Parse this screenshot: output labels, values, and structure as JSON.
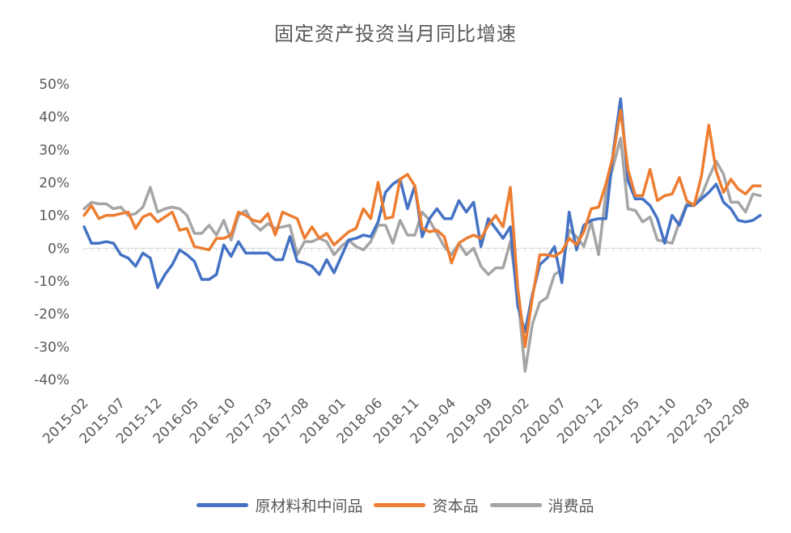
{
  "chart_data": {
    "type": "line",
    "title": "固定资产投资当月同比增速",
    "xlabel": "",
    "ylabel": "",
    "ylim": [
      -0.4,
      0.5
    ],
    "yticks": [
      -0.4,
      -0.3,
      -0.2,
      -0.1,
      0,
      0.1,
      0.2,
      0.3,
      0.4,
      0.5
    ],
    "ytick_labels": [
      "-40%",
      "-30%",
      "-20%",
      "-10%",
      "0%",
      "10%",
      "20%",
      "30%",
      "40%",
      "50%"
    ],
    "x_start": "2015-02",
    "x_tick_labels": [
      "2015-02",
      "2015-07",
      "2015-12",
      "2016-05",
      "2016-10",
      "2017-03",
      "2017-08",
      "2018-01",
      "2018-06",
      "2018-11",
      "2019-04",
      "2019-09",
      "2020-02",
      "2020-07",
      "2020-12",
      "2021-05",
      "2021-10",
      "2022-03",
      "2022-08"
    ],
    "legend_position": "bottom",
    "grid": false,
    "series": [
      {
        "name": "原材料和中间品",
        "color": "#4472C4",
        "values": [
          0.065,
          0.015,
          0.015,
          0.02,
          0.015,
          -0.02,
          -0.03,
          -0.055,
          -0.015,
          -0.03,
          -0.12,
          -0.08,
          -0.05,
          -0.005,
          -0.02,
          -0.04,
          -0.095,
          -0.095,
          -0.08,
          0.01,
          -0.025,
          0.02,
          -0.015,
          -0.015,
          -0.015,
          -0.015,
          -0.035,
          -0.035,
          0.035,
          -0.04,
          -0.045,
          -0.055,
          -0.08,
          -0.035,
          -0.075,
          -0.025,
          0.025,
          0.03,
          0.04,
          0.035,
          0.08,
          0.17,
          0.195,
          0.21,
          0.12,
          0.19,
          0.035,
          0.09,
          0.12,
          0.09,
          0.09,
          0.145,
          0.11,
          0.14,
          0.005,
          0.09,
          0.06,
          0.03,
          0.065,
          -0.175,
          -0.255,
          -0.14,
          -0.05,
          -0.03,
          0.005,
          -0.105,
          0.11,
          -0.005,
          0.07,
          0.085,
          0.09,
          0.09,
          0.295,
          0.455,
          0.205,
          0.15,
          0.15,
          0.13,
          0.09,
          0.015,
          0.1,
          0.07,
          0.13,
          0.13,
          0.15,
          0.17,
          0.195,
          0.14,
          0.12,
          0.085,
          0.08,
          0.085,
          0.1
        ]
      },
      {
        "name": "资本品",
        "color": "#ED7D31",
        "values": [
          0.1,
          0.13,
          0.09,
          0.1,
          0.1,
          0.105,
          0.11,
          0.06,
          0.095,
          0.105,
          0.08,
          0.095,
          0.11,
          0.055,
          0.06,
          0.005,
          0.0,
          -0.005,
          0.03,
          0.03,
          0.04,
          0.11,
          0.1,
          0.085,
          0.08,
          0.105,
          0.04,
          0.11,
          0.1,
          0.09,
          0.03,
          0.065,
          0.03,
          0.045,
          0.01,
          0.03,
          0.05,
          0.06,
          0.12,
          0.09,
          0.2,
          0.09,
          0.095,
          0.21,
          0.225,
          0.19,
          0.06,
          0.05,
          0.055,
          0.035,
          -0.045,
          0.015,
          0.03,
          0.04,
          0.03,
          0.07,
          0.1,
          0.065,
          0.185,
          -0.12,
          -0.3,
          -0.15,
          -0.02,
          -0.02,
          -0.025,
          -0.01,
          0.03,
          0.01,
          0.05,
          0.12,
          0.125,
          0.195,
          0.285,
          0.42,
          0.24,
          0.16,
          0.16,
          0.24,
          0.145,
          0.16,
          0.165,
          0.215,
          0.145,
          0.13,
          0.22,
          0.375,
          0.235,
          0.17,
          0.21,
          0.18,
          0.165,
          0.19,
          0.19
        ]
      },
      {
        "name": "消费品",
        "color": "#A5A5A5",
        "values": [
          0.12,
          0.14,
          0.135,
          0.135,
          0.12,
          0.125,
          0.1,
          0.105,
          0.125,
          0.185,
          0.11,
          0.12,
          0.125,
          0.12,
          0.1,
          0.045,
          0.045,
          0.07,
          0.04,
          0.085,
          0.025,
          0.1,
          0.115,
          0.075,
          0.055,
          0.075,
          0.06,
          0.065,
          0.07,
          -0.02,
          0.02,
          0.02,
          0.03,
          0.02,
          -0.02,
          0.005,
          0.025,
          0.005,
          -0.005,
          0.02,
          0.07,
          0.07,
          0.015,
          0.085,
          0.04,
          0.04,
          0.11,
          0.085,
          0.045,
          0.005,
          -0.02,
          0.015,
          -0.02,
          0.0,
          -0.055,
          -0.08,
          -0.06,
          -0.06,
          0.02,
          -0.14,
          -0.375,
          -0.23,
          -0.165,
          -0.15,
          -0.08,
          -0.065,
          0.055,
          0.035,
          0.005,
          0.08,
          -0.02,
          0.17,
          0.25,
          0.335,
          0.12,
          0.115,
          0.08,
          0.095,
          0.025,
          0.02,
          0.015,
          0.08,
          0.135,
          0.13,
          0.16,
          0.215,
          0.265,
          0.225,
          0.14,
          0.14,
          0.11,
          0.165,
          0.16
        ]
      }
    ]
  }
}
